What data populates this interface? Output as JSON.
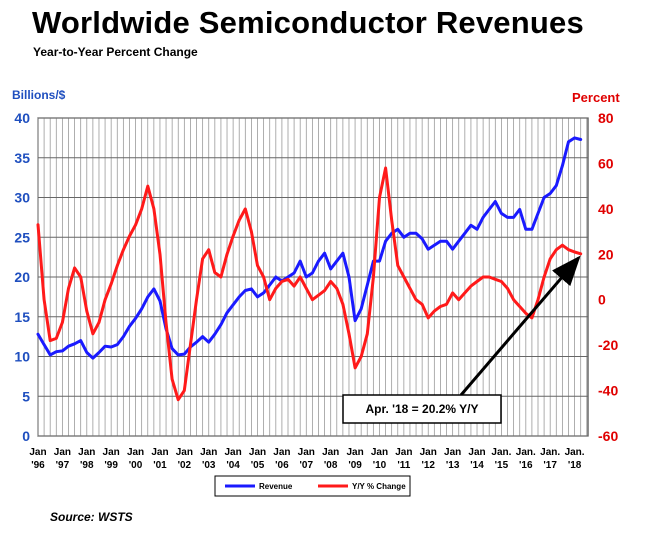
{
  "title": "Worldwide Semiconductor Revenues",
  "subtitle": "Year-to-Year Percent Change",
  "left_unit": "Billions/$",
  "right_unit": "Percent",
  "source": "Source: WSTS",
  "colors": {
    "revenue": "#1a1aff",
    "yoy": "#ff1a1a",
    "left_axis": "#1f4fbf",
    "right_axis": "#e00000",
    "grid": "#9a9a9a",
    "arrow": "#000000"
  },
  "chart_data": {
    "type": "line",
    "x_ticks": [
      {
        "top": "Jan",
        "bottom": "'96"
      },
      {
        "top": "Jan",
        "bottom": "'97"
      },
      {
        "top": "Jan",
        "bottom": "'98"
      },
      {
        "top": "Jan",
        "bottom": "'99"
      },
      {
        "top": "Jan",
        "bottom": "'00"
      },
      {
        "top": "Jan",
        "bottom": "'01"
      },
      {
        "top": "Jan",
        "bottom": "'02"
      },
      {
        "top": "Jan",
        "bottom": "'03"
      },
      {
        "top": "Jan",
        "bottom": "'04"
      },
      {
        "top": "Jan",
        "bottom": "'05"
      },
      {
        "top": "Jan",
        "bottom": "'06"
      },
      {
        "top": "Jan",
        "bottom": "'07"
      },
      {
        "top": "Jan",
        "bottom": "'08"
      },
      {
        "top": "Jan",
        "bottom": "'09"
      },
      {
        "top": "Jan",
        "bottom": "'10"
      },
      {
        "top": "Jan",
        "bottom": "'11"
      },
      {
        "top": "Jan",
        "bottom": "'12"
      },
      {
        "top": "Jan",
        "bottom": "'13"
      },
      {
        "top": "Jan",
        "bottom": "'14"
      },
      {
        "top": "Jan.",
        "bottom": "'15"
      },
      {
        "top": "Jan.",
        "bottom": "'16"
      },
      {
        "top": "Jan.",
        "bottom": "'17"
      },
      {
        "top": "Jan.",
        "bottom": "'18"
      }
    ],
    "y_left": {
      "min": 0,
      "max": 40,
      "ticks": [
        0,
        5,
        10,
        15,
        20,
        25,
        30,
        35,
        40
      ]
    },
    "y_right": {
      "min": -60,
      "max": 80,
      "ticks": [
        -60,
        -40,
        -20,
        0,
        20,
        40,
        60,
        80
      ]
    },
    "series": [
      {
        "name": "Revenue",
        "axis": "left",
        "points": [
          [
            1996.0,
            12.8
          ],
          [
            1996.25,
            11.5
          ],
          [
            1996.5,
            10.2
          ],
          [
            1996.75,
            10.6
          ],
          [
            1997.0,
            10.7
          ],
          [
            1997.25,
            11.3
          ],
          [
            1997.5,
            11.6
          ],
          [
            1997.75,
            12.0
          ],
          [
            1998.0,
            10.5
          ],
          [
            1998.25,
            9.8
          ],
          [
            1998.5,
            10.5
          ],
          [
            1998.75,
            11.3
          ],
          [
            1999.0,
            11.2
          ],
          [
            1999.25,
            11.5
          ],
          [
            1999.5,
            12.5
          ],
          [
            1999.75,
            13.8
          ],
          [
            2000.0,
            14.8
          ],
          [
            2000.25,
            16.0
          ],
          [
            2000.5,
            17.5
          ],
          [
            2000.75,
            18.5
          ],
          [
            2001.0,
            17.0
          ],
          [
            2001.25,
            13.5
          ],
          [
            2001.5,
            11.0
          ],
          [
            2001.75,
            10.2
          ],
          [
            2002.0,
            10.3
          ],
          [
            2002.25,
            11.2
          ],
          [
            2002.5,
            11.8
          ],
          [
            2002.75,
            12.5
          ],
          [
            2003.0,
            11.8
          ],
          [
            2003.25,
            12.8
          ],
          [
            2003.5,
            14.0
          ],
          [
            2003.75,
            15.5
          ],
          [
            2004.0,
            16.5
          ],
          [
            2004.25,
            17.5
          ],
          [
            2004.5,
            18.3
          ],
          [
            2004.75,
            18.5
          ],
          [
            2005.0,
            17.5
          ],
          [
            2005.25,
            18.0
          ],
          [
            2005.5,
            19.0
          ],
          [
            2005.75,
            20.0
          ],
          [
            2006.0,
            19.5
          ],
          [
            2006.25,
            20.0
          ],
          [
            2006.5,
            20.5
          ],
          [
            2006.75,
            22.0
          ],
          [
            2007.0,
            20.0
          ],
          [
            2007.25,
            20.5
          ],
          [
            2007.5,
            22.0
          ],
          [
            2007.75,
            23.0
          ],
          [
            2008.0,
            21.0
          ],
          [
            2008.25,
            22.0
          ],
          [
            2008.5,
            23.0
          ],
          [
            2008.75,
            20.0
          ],
          [
            2009.0,
            14.5
          ],
          [
            2009.25,
            16.0
          ],
          [
            2009.5,
            19.0
          ],
          [
            2009.75,
            22.0
          ],
          [
            2010.0,
            22.0
          ],
          [
            2010.25,
            24.5
          ],
          [
            2010.5,
            25.5
          ],
          [
            2010.75,
            26.0
          ],
          [
            2011.0,
            25.0
          ],
          [
            2011.25,
            25.5
          ],
          [
            2011.5,
            25.5
          ],
          [
            2011.75,
            24.8
          ],
          [
            2012.0,
            23.5
          ],
          [
            2012.25,
            24.0
          ],
          [
            2012.5,
            24.5
          ],
          [
            2012.75,
            24.5
          ],
          [
            2013.0,
            23.5
          ],
          [
            2013.25,
            24.5
          ],
          [
            2013.5,
            25.5
          ],
          [
            2013.75,
            26.5
          ],
          [
            2014.0,
            26.0
          ],
          [
            2014.25,
            27.5
          ],
          [
            2014.5,
            28.5
          ],
          [
            2014.75,
            29.5
          ],
          [
            2015.0,
            28.0
          ],
          [
            2015.25,
            27.5
          ],
          [
            2015.5,
            27.5
          ],
          [
            2015.75,
            28.5
          ],
          [
            2016.0,
            26.0
          ],
          [
            2016.25,
            26.0
          ],
          [
            2016.5,
            28.0
          ],
          [
            2016.75,
            30.0
          ],
          [
            2017.0,
            30.5
          ],
          [
            2017.25,
            31.5
          ],
          [
            2017.5,
            34.0
          ],
          [
            2017.75,
            37.0
          ],
          [
            2018.0,
            37.5
          ],
          [
            2018.25,
            37.3
          ]
        ]
      },
      {
        "name": "Y/Y % Change",
        "axis": "right",
        "points": [
          [
            1996.0,
            33
          ],
          [
            1996.25,
            0
          ],
          [
            1996.5,
            -18
          ],
          [
            1996.75,
            -17
          ],
          [
            1997.0,
            -10
          ],
          [
            1997.25,
            5
          ],
          [
            1997.5,
            14
          ],
          [
            1997.75,
            10
          ],
          [
            1998.0,
            -5
          ],
          [
            1998.25,
            -15
          ],
          [
            1998.5,
            -10
          ],
          [
            1998.75,
            0
          ],
          [
            1999.0,
            7
          ],
          [
            1999.25,
            15
          ],
          [
            1999.5,
            22
          ],
          [
            1999.75,
            28
          ],
          [
            2000.0,
            33
          ],
          [
            2000.25,
            40
          ],
          [
            2000.5,
            50
          ],
          [
            2000.75,
            40
          ],
          [
            2001.0,
            20
          ],
          [
            2001.25,
            -10
          ],
          [
            2001.5,
            -35
          ],
          [
            2001.75,
            -44
          ],
          [
            2002.0,
            -40
          ],
          [
            2002.25,
            -20
          ],
          [
            2002.5,
            0
          ],
          [
            2002.75,
            18
          ],
          [
            2003.0,
            22
          ],
          [
            2003.25,
            12
          ],
          [
            2003.5,
            10
          ],
          [
            2003.75,
            20
          ],
          [
            2004.0,
            28
          ],
          [
            2004.25,
            35
          ],
          [
            2004.5,
            40
          ],
          [
            2004.75,
            30
          ],
          [
            2005.0,
            15
          ],
          [
            2005.25,
            10
          ],
          [
            2005.5,
            0
          ],
          [
            2005.75,
            5
          ],
          [
            2006.0,
            8
          ],
          [
            2006.25,
            9
          ],
          [
            2006.5,
            6
          ],
          [
            2006.75,
            10
          ],
          [
            2007.0,
            5
          ],
          [
            2007.25,
            0
          ],
          [
            2007.5,
            2
          ],
          [
            2007.75,
            4
          ],
          [
            2008.0,
            8
          ],
          [
            2008.25,
            5
          ],
          [
            2008.5,
            -2
          ],
          [
            2008.75,
            -15
          ],
          [
            2009.0,
            -30
          ],
          [
            2009.25,
            -25
          ],
          [
            2009.5,
            -15
          ],
          [
            2009.75,
            10
          ],
          [
            2010.0,
            45
          ],
          [
            2010.25,
            58
          ],
          [
            2010.5,
            35
          ],
          [
            2010.75,
            15
          ],
          [
            2011.0,
            10
          ],
          [
            2011.25,
            5
          ],
          [
            2011.5,
            0
          ],
          [
            2011.75,
            -2
          ],
          [
            2012.0,
            -8
          ],
          [
            2012.25,
            -5
          ],
          [
            2012.5,
            -3
          ],
          [
            2012.75,
            -2
          ],
          [
            2013.0,
            3
          ],
          [
            2013.25,
            0
          ],
          [
            2013.5,
            3
          ],
          [
            2013.75,
            6
          ],
          [
            2014.0,
            8
          ],
          [
            2014.25,
            10
          ],
          [
            2014.5,
            10
          ],
          [
            2014.75,
            9
          ],
          [
            2015.0,
            8
          ],
          [
            2015.25,
            5
          ],
          [
            2015.5,
            0
          ],
          [
            2015.75,
            -3
          ],
          [
            2016.0,
            -6
          ],
          [
            2016.25,
            -8
          ],
          [
            2016.5,
            0
          ],
          [
            2016.75,
            10
          ],
          [
            2017.0,
            18
          ],
          [
            2017.25,
            22
          ],
          [
            2017.5,
            24
          ],
          [
            2017.75,
            22
          ],
          [
            2018.0,
            21
          ],
          [
            2018.25,
            20.2
          ]
        ]
      }
    ],
    "legend": {
      "position": "bottom",
      "entries": [
        "Revenue",
        "Y/Y % Change"
      ]
    },
    "annotation": {
      "text": "Apr. '18 = 20.2% Y/Y",
      "target_x": 2018.25,
      "target_y": 20.2,
      "axis": "right"
    },
    "grid": true
  }
}
